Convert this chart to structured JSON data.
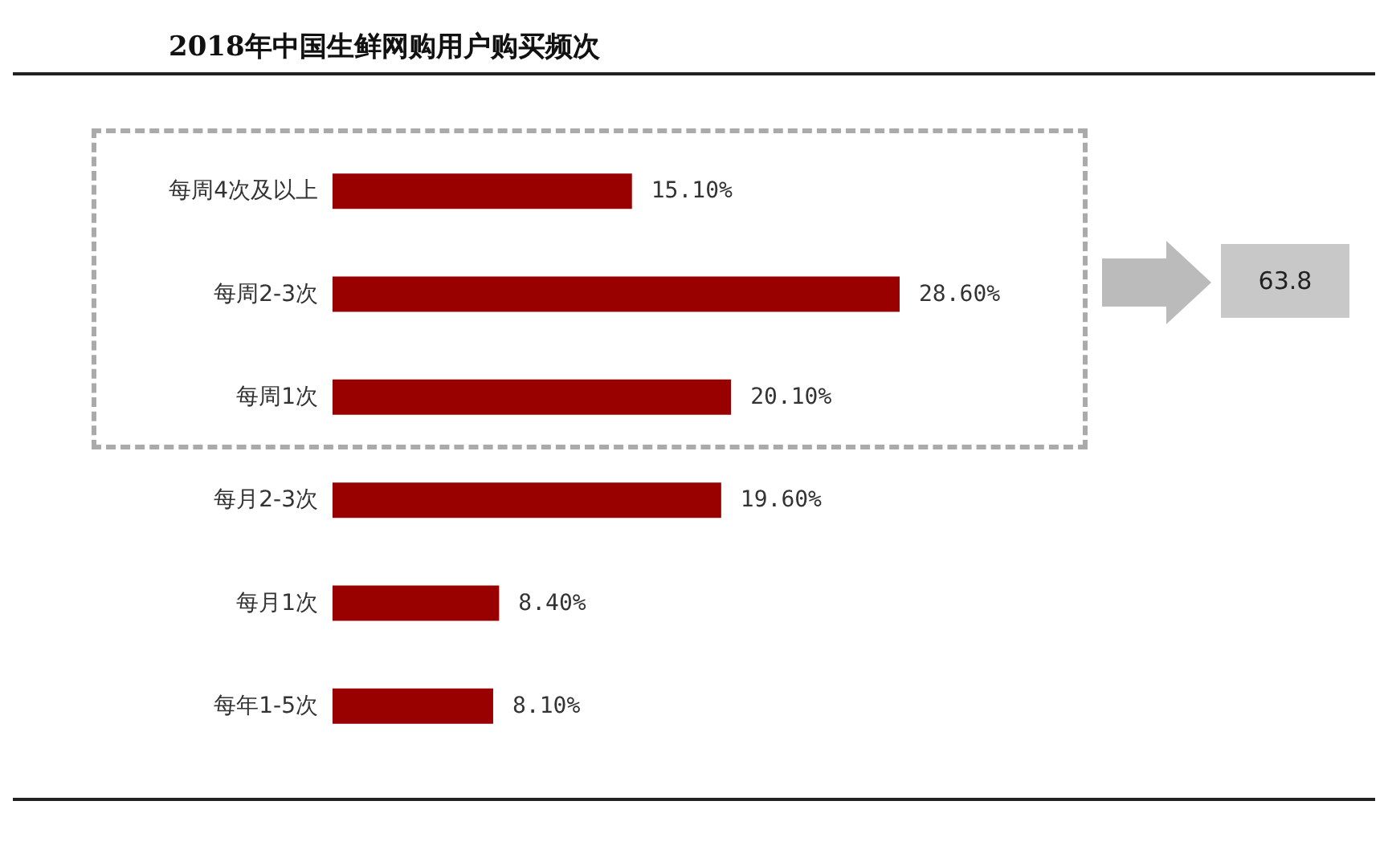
{
  "chart_data": {
    "type": "bar",
    "orientation": "horizontal",
    "title": "2018年中国生鲜网购用户购买频次",
    "categories": [
      "每周4次及以上",
      "每周2-3次",
      "每周1次",
      "每月2-3次",
      "每月1次",
      "每年1-5次"
    ],
    "values": [
      15.1,
      28.6,
      20.1,
      19.6,
      8.4,
      8.1
    ],
    "value_labels": [
      "15.10%",
      "28.60%",
      "20.10%",
      "19.60%",
      "8.40%",
      "8.10%"
    ],
    "color": "#990000",
    "annotations": [
      "63.8"
    ]
  }
}
